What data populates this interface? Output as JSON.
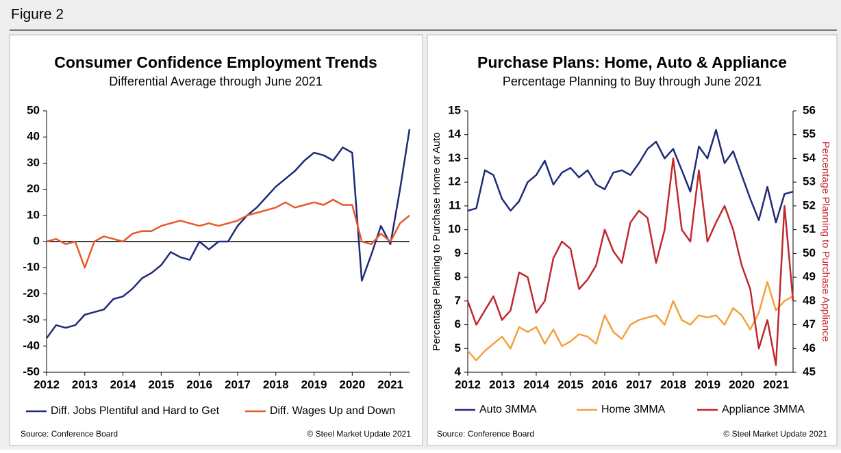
{
  "header": {
    "title": "Figure 2"
  },
  "chart_data": [
    {
      "type": "line",
      "title": "Consumer Confidence Employment Trends",
      "subtitle": "Differential Average through June 2021",
      "x": [
        2012,
        2012.25,
        2012.5,
        2012.75,
        2013,
        2013.25,
        2013.5,
        2013.75,
        2014,
        2014.25,
        2014.5,
        2014.75,
        2015,
        2015.25,
        2015.5,
        2015.75,
        2016,
        2016.25,
        2016.5,
        2016.75,
        2017,
        2017.25,
        2017.5,
        2017.75,
        2018,
        2018.25,
        2018.5,
        2018.75,
        2019,
        2019.25,
        2019.5,
        2019.75,
        2020,
        2020.25,
        2020.5,
        2020.75,
        2021,
        2021.25,
        2021.5
      ],
      "xlim": [
        2012,
        2021.5
      ],
      "xticks": [
        2012,
        2013,
        2014,
        2015,
        2016,
        2017,
        2018,
        2019,
        2020,
        2021
      ],
      "ylim": [
        -50,
        50
      ],
      "yticks": [
        -50,
        -40,
        -30,
        -20,
        -10,
        0,
        10,
        20,
        30,
        40,
        50
      ],
      "series": [
        {
          "name": "Diff. Jobs Plentiful and Hard to Get",
          "color": "#1f2a78",
          "values": [
            -37,
            -32,
            -33,
            -32,
            -28,
            -27,
            -26,
            -22,
            -21,
            -18,
            -14,
            -12,
            -9,
            -4,
            -6,
            -7,
            0,
            -3,
            0,
            0,
            6,
            10,
            13,
            17,
            21,
            24,
            27,
            31,
            34,
            33,
            31,
            36,
            34,
            -15,
            -5,
            6,
            -1,
            20,
            43
          ]
        },
        {
          "name": "Diff. Wages Up and Down",
          "color": "#e8572a",
          "values": [
            0,
            1,
            -1,
            0,
            -10,
            0,
            2,
            1,
            0,
            3,
            4,
            4,
            6,
            7,
            8,
            7,
            6,
            7,
            6,
            7,
            8,
            10,
            11,
            12,
            13,
            15,
            13,
            14,
            15,
            14,
            16,
            14,
            14,
            0,
            -1,
            3,
            0,
            7,
            10
          ]
        }
      ],
      "source": "Source: Conference Board",
      "credit": "© Steel Market Update 2021"
    },
    {
      "type": "line",
      "title": "Purchase Plans: Home, Auto & Appliance",
      "subtitle": "Percentage Planning to Buy through June 2021",
      "ylabel": "Percentage Planning to Purchase Home or Auto",
      "y2label": "Percentage Planning to Purchase Appliance",
      "x": [
        2012,
        2012.25,
        2012.5,
        2012.75,
        2013,
        2013.25,
        2013.5,
        2013.75,
        2014,
        2014.25,
        2014.5,
        2014.75,
        2015,
        2015.25,
        2015.5,
        2015.75,
        2016,
        2016.25,
        2016.5,
        2016.75,
        2017,
        2017.25,
        2017.5,
        2017.75,
        2018,
        2018.25,
        2018.5,
        2018.75,
        2019,
        2019.25,
        2019.5,
        2019.75,
        2020,
        2020.25,
        2020.5,
        2020.75,
        2021,
        2021.25,
        2021.5
      ],
      "xlim": [
        2012,
        2021.5
      ],
      "xticks": [
        2012,
        2013,
        2014,
        2015,
        2016,
        2017,
        2018,
        2019,
        2020,
        2021
      ],
      "ylim": [
        4,
        15
      ],
      "yticks": [
        4,
        5,
        6,
        7,
        8,
        9,
        10,
        11,
        12,
        13,
        14,
        15
      ],
      "y2lim": [
        45,
        56
      ],
      "y2ticks": [
        45,
        46,
        47,
        48,
        49,
        50,
        51,
        52,
        53,
        54,
        55,
        56
      ],
      "series": [
        {
          "name": "Auto 3MMA",
          "color": "#1f2a78",
          "values": [
            10.8,
            10.9,
            12.5,
            12.3,
            11.3,
            10.8,
            11.2,
            12.0,
            12.3,
            12.9,
            11.9,
            12.4,
            12.6,
            12.2,
            12.5,
            11.9,
            11.7,
            12.4,
            12.5,
            12.3,
            12.8,
            13.4,
            13.7,
            13.0,
            13.4,
            12.5,
            11.6,
            13.5,
            13.0,
            14.2,
            12.8,
            13.3,
            12.3,
            11.3,
            10.4,
            11.8,
            10.3,
            11.5,
            11.6
          ]
        },
        {
          "name": "Home 3MMA",
          "color": "#f5a03c",
          "values": [
            4.9,
            4.5,
            4.9,
            5.2,
            5.5,
            5.0,
            5.9,
            5.7,
            5.9,
            5.2,
            5.8,
            5.1,
            5.3,
            5.6,
            5.5,
            5.2,
            6.4,
            5.7,
            5.4,
            6.0,
            6.2,
            6.3,
            6.4,
            6.0,
            7.0,
            6.2,
            6.0,
            6.4,
            6.3,
            6.4,
            6.0,
            6.7,
            6.4,
            5.8,
            6.5,
            7.8,
            6.6,
            7.0,
            7.2
          ]
        },
        {
          "name": "Appliance 3MMA",
          "color": "#c0282d",
          "axis": "y2",
          "values": [
            48.0,
            47.0,
            47.6,
            48.2,
            47.2,
            47.6,
            49.2,
            49.0,
            47.5,
            48.0,
            49.8,
            50.5,
            50.2,
            48.5,
            48.9,
            49.5,
            51.0,
            50.1,
            49.6,
            51.3,
            51.8,
            51.5,
            49.6,
            51.0,
            54.0,
            51.0,
            50.5,
            53.5,
            50.5,
            51.3,
            52.0,
            51.0,
            49.5,
            48.5,
            46.0,
            47.2,
            45.3,
            52.0,
            48.0
          ]
        }
      ],
      "source": "Source: Conference Board",
      "credit": "© Steel Market Update 2021"
    }
  ]
}
